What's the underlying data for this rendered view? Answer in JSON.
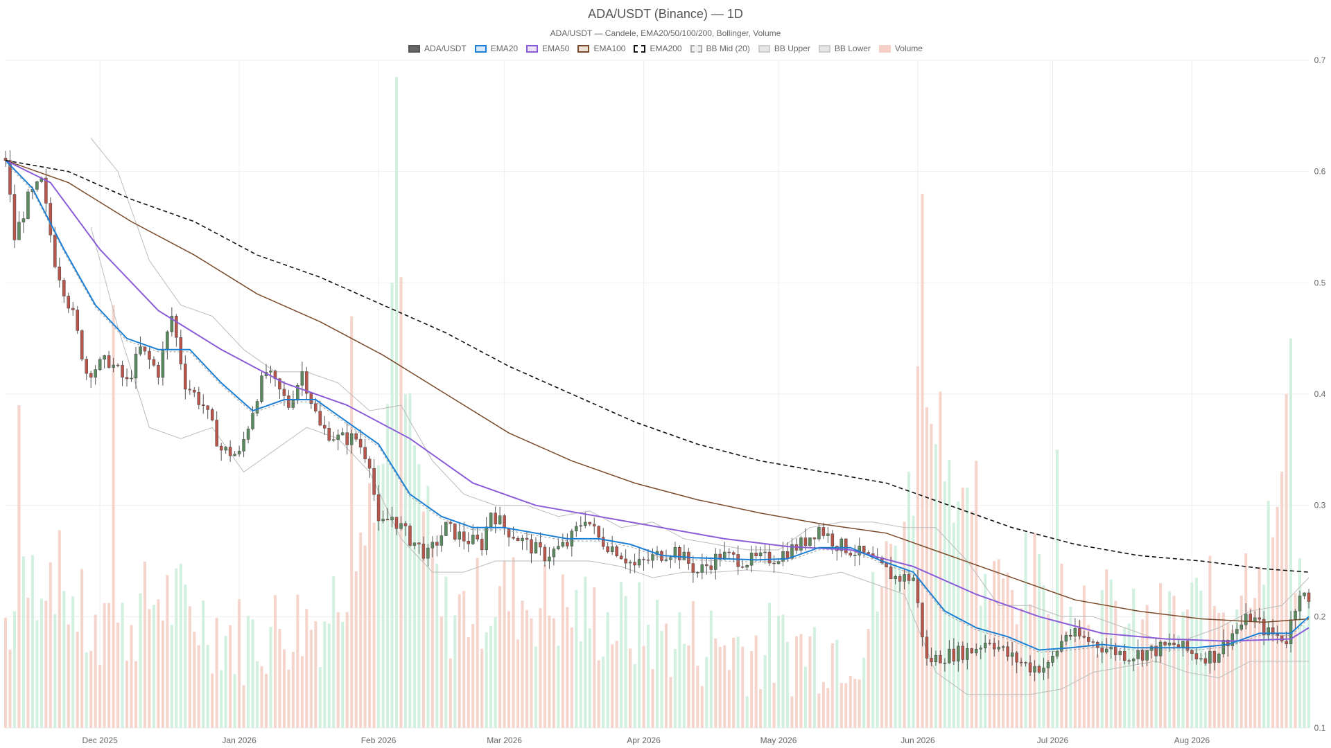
{
  "chart_data": {
    "type": "candlestick",
    "title": "ADA/USDT (Binance) — 1D",
    "subtitle": "ADA/USDT — Candele, EMA20/50/100/200, Bollinger, Volume",
    "legend": [
      {
        "label": "ADA/USDT",
        "fill": "#666666",
        "stroke": "#555555",
        "dash": false
      },
      {
        "label": "EMA20",
        "fill": "#d7e9f8",
        "stroke": "#1a7fd4",
        "dash": false
      },
      {
        "label": "EMA50",
        "fill": "#ece3f8",
        "stroke": "#8a5cd8",
        "dash": false
      },
      {
        "label": "EMA100",
        "fill": "#efe0d6",
        "stroke": "#7a4a2a",
        "dash": false
      },
      {
        "label": "EMA200",
        "fill": "#ffffff",
        "stroke": "#111111",
        "dash": true
      },
      {
        "label": "BB Mid (20)",
        "fill": "#eeeeee",
        "stroke": "#aaaaaa",
        "dash": true
      },
      {
        "label": "BB Upper",
        "fill": "#e6e6e6",
        "stroke": "#cccccc",
        "dash": false
      },
      {
        "label": "BB Lower",
        "fill": "#e6e6e6",
        "stroke": "#cccccc",
        "dash": false
      },
      {
        "label": "Volume",
        "fill": "#f4cfc6",
        "stroke": "#f4cfc6",
        "dash": false
      }
    ],
    "y_axis": {
      "min": 0.1,
      "max": 0.7,
      "ticks": [
        "0.7",
        "0.6",
        "0.5",
        "0.4",
        "0.3",
        "0.2",
        "0.1"
      ],
      "position": "right"
    },
    "x_axis": {
      "start": "2025-11-10",
      "end": "2026-08-27",
      "ticks": [
        {
          "date": "2025-12-01",
          "label": "Dec 2025"
        },
        {
          "date": "2026-01-01",
          "label": "Jan 2026"
        },
        {
          "date": "2026-02-01",
          "label": "Feb 2026"
        },
        {
          "date": "2026-03-01",
          "label": "Mar 2026"
        },
        {
          "date": "2026-04-01",
          "label": "Apr 2026"
        },
        {
          "date": "2026-05-01",
          "label": "May 2026"
        },
        {
          "date": "2026-06-01",
          "label": "Jun 2026"
        },
        {
          "date": "2026-07-01",
          "label": "Jul 2026"
        },
        {
          "date": "2026-08-01",
          "label": "Aug 2026"
        }
      ]
    },
    "close_path": [
      [
        "2025-11-10",
        0.612
      ],
      [
        "2025-11-12",
        0.54
      ],
      [
        "2025-11-15",
        0.575
      ],
      [
        "2025-11-18",
        0.59
      ],
      [
        "2025-11-21",
        0.52
      ],
      [
        "2025-11-25",
        0.47
      ],
      [
        "2025-11-28",
        0.42
      ],
      [
        "2025-12-03",
        0.43
      ],
      [
        "2025-12-07",
        0.41
      ],
      [
        "2025-12-10",
        0.44
      ],
      [
        "2025-12-14",
        0.42
      ],
      [
        "2025-12-17",
        0.47
      ],
      [
        "2025-12-20",
        0.41
      ],
      [
        "2025-12-24",
        0.39
      ],
      [
        "2025-12-28",
        0.35
      ],
      [
        "2026-01-01",
        0.345
      ],
      [
        "2026-01-05",
        0.4
      ],
      [
        "2026-01-07",
        0.42
      ],
      [
        "2026-01-12",
        0.39
      ],
      [
        "2026-01-15",
        0.42
      ],
      [
        "2026-01-19",
        0.37
      ],
      [
        "2026-01-23",
        0.36
      ],
      [
        "2026-01-27",
        0.36
      ],
      [
        "2026-01-30",
        0.34
      ],
      [
        "2026-02-01",
        0.28
      ],
      [
        "2026-02-04",
        0.29
      ],
      [
        "2026-02-08",
        0.27
      ],
      [
        "2026-02-12",
        0.255
      ],
      [
        "2026-02-16",
        0.28
      ],
      [
        "2026-02-20",
        0.27
      ],
      [
        "2026-02-24",
        0.265
      ],
      [
        "2026-02-26",
        0.295
      ],
      [
        "2026-03-01",
        0.28
      ],
      [
        "2026-03-06",
        0.265
      ],
      [
        "2026-03-10",
        0.255
      ],
      [
        "2026-03-15",
        0.265
      ],
      [
        "2026-03-19",
        0.29
      ],
      [
        "2026-03-22",
        0.27
      ],
      [
        "2026-03-26",
        0.26
      ],
      [
        "2026-03-30",
        0.245
      ],
      [
        "2026-04-04",
        0.255
      ],
      [
        "2026-04-08",
        0.26
      ],
      [
        "2026-04-13",
        0.24
      ],
      [
        "2026-04-18",
        0.255
      ],
      [
        "2026-04-24",
        0.25
      ],
      [
        "2026-04-30",
        0.253
      ],
      [
        "2026-05-06",
        0.265
      ],
      [
        "2026-05-10",
        0.28
      ],
      [
        "2026-05-14",
        0.265
      ],
      [
        "2026-05-20",
        0.255
      ],
      [
        "2026-05-27",
        0.235
      ],
      [
        "2026-05-31",
        0.235
      ],
      [
        "2026-06-03",
        0.16
      ],
      [
        "2026-06-07",
        0.165
      ],
      [
        "2026-06-13",
        0.17
      ],
      [
        "2026-06-17",
        0.18
      ],
      [
        "2026-06-21",
        0.165
      ],
      [
        "2026-06-26",
        0.155
      ],
      [
        "2026-06-30",
        0.155
      ],
      [
        "2026-07-04",
        0.185
      ],
      [
        "2026-07-08",
        0.18
      ],
      [
        "2026-07-14",
        0.17
      ],
      [
        "2026-07-18",
        0.165
      ],
      [
        "2026-07-24",
        0.17
      ],
      [
        "2026-07-28",
        0.175
      ],
      [
        "2026-08-02",
        0.165
      ],
      [
        "2026-08-06",
        0.165
      ],
      [
        "2026-08-10",
        0.185
      ],
      [
        "2026-08-14",
        0.2
      ],
      [
        "2026-08-18",
        0.185
      ],
      [
        "2026-08-22",
        0.18
      ],
      [
        "2026-08-25",
        0.225
      ],
      [
        "2026-08-27",
        0.21
      ]
    ],
    "ema20_path": [
      [
        "2025-11-10",
        0.61
      ],
      [
        "2025-11-16",
        0.585
      ],
      [
        "2025-11-23",
        0.53
      ],
      [
        "2025-11-30",
        0.48
      ],
      [
        "2025-12-07",
        0.45
      ],
      [
        "2025-12-14",
        0.44
      ],
      [
        "2025-12-21",
        0.44
      ],
      [
        "2025-12-28",
        0.41
      ],
      [
        "2026-01-04",
        0.385
      ],
      [
        "2026-01-11",
        0.395
      ],
      [
        "2026-01-18",
        0.395
      ],
      [
        "2026-01-25",
        0.375
      ],
      [
        "2026-02-01",
        0.355
      ],
      [
        "2026-02-08",
        0.31
      ],
      [
        "2026-02-15",
        0.29
      ],
      [
        "2026-02-22",
        0.28
      ],
      [
        "2026-03-01",
        0.28
      ],
      [
        "2026-03-08",
        0.275
      ],
      [
        "2026-03-15",
        0.27
      ],
      [
        "2026-03-22",
        0.27
      ],
      [
        "2026-03-29",
        0.265
      ],
      [
        "2026-04-05",
        0.255
      ],
      [
        "2026-04-12",
        0.253
      ],
      [
        "2026-04-19",
        0.252
      ],
      [
        "2026-04-26",
        0.251
      ],
      [
        "2026-05-03",
        0.252
      ],
      [
        "2026-05-10",
        0.262
      ],
      [
        "2026-05-17",
        0.262
      ],
      [
        "2026-05-24",
        0.25
      ],
      [
        "2026-05-31",
        0.24
      ],
      [
        "2026-06-07",
        0.205
      ],
      [
        "2026-06-14",
        0.19
      ],
      [
        "2026-06-21",
        0.182
      ],
      [
        "2026-06-28",
        0.17
      ],
      [
        "2026-07-05",
        0.172
      ],
      [
        "2026-07-12",
        0.175
      ],
      [
        "2026-07-19",
        0.172
      ],
      [
        "2026-07-26",
        0.172
      ],
      [
        "2026-08-02",
        0.172
      ],
      [
        "2026-08-09",
        0.175
      ],
      [
        "2026-08-16",
        0.185
      ],
      [
        "2026-08-23",
        0.185
      ],
      [
        "2026-08-27",
        0.2
      ]
    ],
    "ema50_path": [
      [
        "2025-11-10",
        0.61
      ],
      [
        "2025-11-20",
        0.59
      ],
      [
        "2025-12-01",
        0.53
      ],
      [
        "2025-12-14",
        0.475
      ],
      [
        "2025-12-28",
        0.44
      ],
      [
        "2026-01-11",
        0.41
      ],
      [
        "2026-01-25",
        0.39
      ],
      [
        "2026-02-08",
        0.36
      ],
      [
        "2026-02-22",
        0.32
      ],
      [
        "2026-03-08",
        0.3
      ],
      [
        "2026-03-22",
        0.29
      ],
      [
        "2026-04-05",
        0.28
      ],
      [
        "2026-04-19",
        0.27
      ],
      [
        "2026-05-03",
        0.263
      ],
      [
        "2026-05-17",
        0.26
      ],
      [
        "2026-05-31",
        0.245
      ],
      [
        "2026-06-14",
        0.22
      ],
      [
        "2026-06-28",
        0.2
      ],
      [
        "2026-07-12",
        0.185
      ],
      [
        "2026-07-26",
        0.18
      ],
      [
        "2026-08-09",
        0.178
      ],
      [
        "2026-08-23",
        0.18
      ],
      [
        "2026-08-27",
        0.19
      ]
    ],
    "ema100_path": [
      [
        "2025-11-10",
        0.61
      ],
      [
        "2025-11-24",
        0.59
      ],
      [
        "2025-12-08",
        0.555
      ],
      [
        "2025-12-22",
        0.525
      ],
      [
        "2026-01-05",
        0.49
      ],
      [
        "2026-01-19",
        0.465
      ],
      [
        "2026-02-02",
        0.435
      ],
      [
        "2026-02-16",
        0.4
      ],
      [
        "2026-03-02",
        0.365
      ],
      [
        "2026-03-16",
        0.34
      ],
      [
        "2026-03-30",
        0.32
      ],
      [
        "2026-04-13",
        0.305
      ],
      [
        "2026-04-27",
        0.293
      ],
      [
        "2026-05-11",
        0.283
      ],
      [
        "2026-05-25",
        0.275
      ],
      [
        "2026-06-08",
        0.255
      ],
      [
        "2026-06-22",
        0.235
      ],
      [
        "2026-07-06",
        0.215
      ],
      [
        "2026-07-20",
        0.205
      ],
      [
        "2026-08-03",
        0.198
      ],
      [
        "2026-08-17",
        0.195
      ],
      [
        "2026-08-27",
        0.198
      ]
    ],
    "ema200_path": [
      [
        "2025-11-10",
        0.61
      ],
      [
        "2025-11-24",
        0.6
      ],
      [
        "2025-12-08",
        0.575
      ],
      [
        "2025-12-22",
        0.555
      ],
      [
        "2026-01-05",
        0.525
      ],
      [
        "2026-01-19",
        0.505
      ],
      [
        "2026-02-02",
        0.48
      ],
      [
        "2026-02-16",
        0.455
      ],
      [
        "2026-03-02",
        0.425
      ],
      [
        "2026-03-16",
        0.4
      ],
      [
        "2026-03-30",
        0.375
      ],
      [
        "2026-04-13",
        0.355
      ],
      [
        "2026-04-27",
        0.34
      ],
      [
        "2026-05-11",
        0.33
      ],
      [
        "2026-05-25",
        0.32
      ],
      [
        "2026-06-08",
        0.3
      ],
      [
        "2026-06-22",
        0.28
      ],
      [
        "2026-07-06",
        0.265
      ],
      [
        "2026-07-20",
        0.255
      ],
      [
        "2026-08-03",
        0.25
      ],
      [
        "2026-08-17",
        0.243
      ],
      [
        "2026-08-27",
        0.24
      ]
    ],
    "bb_upper_path": [
      [
        "2025-11-29",
        0.63
      ],
      [
        "2025-12-05",
        0.6
      ],
      [
        "2025-12-12",
        0.52
      ],
      [
        "2025-12-19",
        0.48
      ],
      [
        "2025-12-26",
        0.47
      ],
      [
        "2026-01-02",
        0.44
      ],
      [
        "2026-01-09",
        0.42
      ],
      [
        "2026-01-16",
        0.42
      ],
      [
        "2026-01-23",
        0.41
      ],
      [
        "2026-01-30",
        0.385
      ],
      [
        "2026-02-06",
        0.39
      ],
      [
        "2026-02-13",
        0.34
      ],
      [
        "2026-02-20",
        0.31
      ],
      [
        "2026-02-27",
        0.3
      ],
      [
        "2026-03-06",
        0.3
      ],
      [
        "2026-03-13",
        0.29
      ],
      [
        "2026-03-20",
        0.295
      ],
      [
        "2026-03-27",
        0.28
      ],
      [
        "2026-04-03",
        0.285
      ],
      [
        "2026-04-10",
        0.27
      ],
      [
        "2026-04-17",
        0.265
      ],
      [
        "2026-04-24",
        0.26
      ],
      [
        "2026-05-01",
        0.26
      ],
      [
        "2026-05-08",
        0.28
      ],
      [
        "2026-05-15",
        0.285
      ],
      [
        "2026-05-22",
        0.285
      ],
      [
        "2026-05-29",
        0.28
      ],
      [
        "2026-06-05",
        0.28
      ],
      [
        "2026-06-12",
        0.25
      ],
      [
        "2026-06-19",
        0.21
      ],
      [
        "2026-06-26",
        0.21
      ],
      [
        "2026-07-03",
        0.2
      ],
      [
        "2026-07-10",
        0.2
      ],
      [
        "2026-07-17",
        0.19
      ],
      [
        "2026-07-24",
        0.18
      ],
      [
        "2026-07-31",
        0.18
      ],
      [
        "2026-08-07",
        0.19
      ],
      [
        "2026-08-14",
        0.205
      ],
      [
        "2026-08-21",
        0.21
      ],
      [
        "2026-08-27",
        0.235
      ]
    ],
    "bb_lower_path": [
      [
        "2025-11-29",
        0.55
      ],
      [
        "2025-12-05",
        0.46
      ],
      [
        "2025-12-12",
        0.37
      ],
      [
        "2025-12-19",
        0.36
      ],
      [
        "2025-12-26",
        0.37
      ],
      [
        "2026-01-02",
        0.33
      ],
      [
        "2026-01-09",
        0.35
      ],
      [
        "2026-01-16",
        0.37
      ],
      [
        "2026-01-23",
        0.36
      ],
      [
        "2026-01-30",
        0.33
      ],
      [
        "2026-02-06",
        0.27
      ],
      [
        "2026-02-13",
        0.24
      ],
      [
        "2026-02-20",
        0.24
      ],
      [
        "2026-02-27",
        0.25
      ],
      [
        "2026-03-06",
        0.25
      ],
      [
        "2026-03-13",
        0.25
      ],
      [
        "2026-03-20",
        0.25
      ],
      [
        "2026-03-27",
        0.245
      ],
      [
        "2026-04-03",
        0.235
      ],
      [
        "2026-04-10",
        0.24
      ],
      [
        "2026-04-17",
        0.24
      ],
      [
        "2026-04-24",
        0.242
      ],
      [
        "2026-05-01",
        0.24
      ],
      [
        "2026-05-08",
        0.235
      ],
      [
        "2026-05-15",
        0.24
      ],
      [
        "2026-05-22",
        0.23
      ],
      [
        "2026-05-29",
        0.22
      ],
      [
        "2026-06-05",
        0.15
      ],
      [
        "2026-06-12",
        0.13
      ],
      [
        "2026-06-19",
        0.13
      ],
      [
        "2026-06-26",
        0.13
      ],
      [
        "2026-07-03",
        0.135
      ],
      [
        "2026-07-10",
        0.15
      ],
      [
        "2026-07-17",
        0.155
      ],
      [
        "2026-07-24",
        0.16
      ],
      [
        "2026-07-31",
        0.15
      ],
      [
        "2026-08-07",
        0.145
      ],
      [
        "2026-08-14",
        0.16
      ],
      [
        "2026-08-21",
        0.16
      ],
      [
        "2026-08-27",
        0.16
      ]
    ],
    "volume": {
      "scale_note": "relative to price axis",
      "path": [
        [
          "2025-11-10",
          0.2
        ],
        [
          "2025-11-20",
          0.25
        ],
        [
          "2025-12-01",
          0.17
        ],
        [
          "2025-12-14",
          0.22
        ],
        [
          "2026-01-01",
          0.18
        ],
        [
          "2026-01-20",
          0.2
        ],
        [
          "2026-02-01",
          0.3
        ],
        [
          "2026-02-05",
          0.45
        ],
        [
          "2026-02-15",
          0.2
        ],
        [
          "2026-03-01",
          0.22
        ],
        [
          "2026-03-20",
          0.2
        ],
        [
          "2026-04-10",
          0.18
        ],
        [
          "2026-05-01",
          0.17
        ],
        [
          "2026-05-20",
          0.18
        ],
        [
          "2026-06-01",
          0.33
        ],
        [
          "2026-06-05",
          0.4
        ],
        [
          "2026-06-15",
          0.22
        ],
        [
          "2026-07-01",
          0.24
        ],
        [
          "2026-07-20",
          0.18
        ],
        [
          "2026-08-10",
          0.22
        ],
        [
          "2026-08-22",
          0.3
        ],
        [
          "2026-08-27",
          0.2
        ]
      ],
      "spikes": [
        [
          "2025-11-13",
          0.39
        ],
        [
          "2025-12-04",
          0.48
        ],
        [
          "2026-01-26",
          0.47
        ],
        [
          "2026-02-04",
          0.5
        ],
        [
          "2026-02-05",
          0.685
        ],
        [
          "2026-02-06",
          0.505
        ],
        [
          "2026-06-01",
          0.425
        ],
        [
          "2026-06-02",
          0.58
        ],
        [
          "2026-06-14",
          0.34
        ],
        [
          "2026-07-02",
          0.35
        ],
        [
          "2026-08-22",
          0.4
        ],
        [
          "2026-08-23",
          0.45
        ]
      ]
    }
  }
}
